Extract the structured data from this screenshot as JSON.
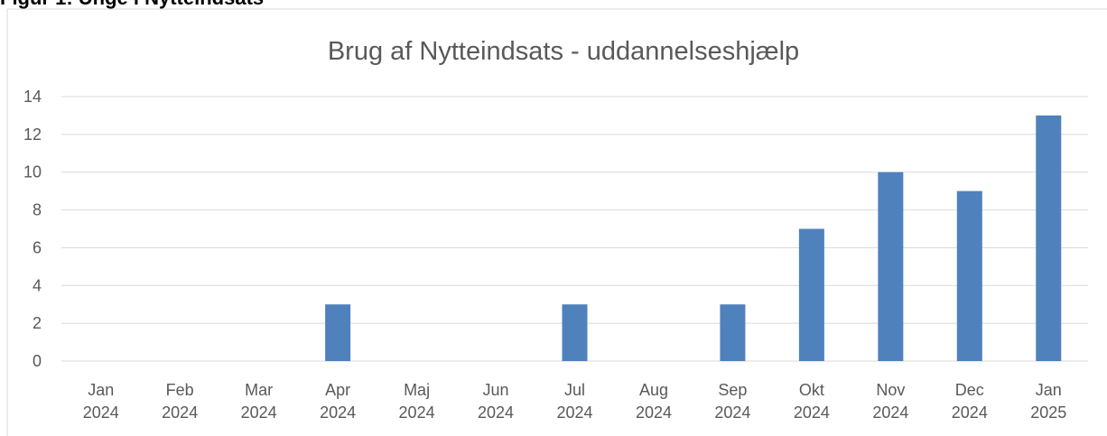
{
  "heading": "Figur 1: Unge i Nytteindsats",
  "chart_data": {
    "type": "bar",
    "title": "Brug af Nytteindsats - uddannelseshjælp",
    "categories": [
      [
        "Jan",
        "2024"
      ],
      [
        "Feb",
        "2024"
      ],
      [
        "Mar",
        "2024"
      ],
      [
        "Apr",
        "2024"
      ],
      [
        "Maj",
        "2024"
      ],
      [
        "Jun",
        "2024"
      ],
      [
        "Jul",
        "2024"
      ],
      [
        "Aug",
        "2024"
      ],
      [
        "Sep",
        "2024"
      ],
      [
        "Okt",
        "2024"
      ],
      [
        "Nov",
        "2024"
      ],
      [
        "Dec",
        "2024"
      ],
      [
        "Jan",
        "2025"
      ]
    ],
    "values": [
      0,
      0,
      0,
      3,
      0,
      0,
      3,
      0,
      3,
      7,
      10,
      9,
      13
    ],
    "color": "#4f81bd",
    "ylim": [
      0,
      14
    ],
    "yticks": [
      0,
      2,
      4,
      6,
      8,
      10,
      12,
      14
    ],
    "grid": true
  }
}
